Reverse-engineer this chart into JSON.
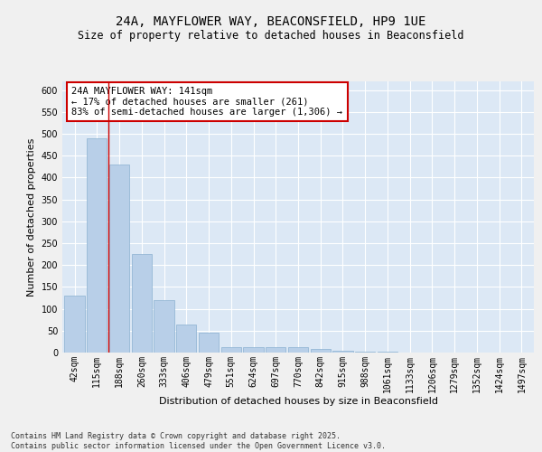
{
  "title_line1": "24A, MAYFLOWER WAY, BEACONSFIELD, HP9 1UE",
  "title_line2": "Size of property relative to detached houses in Beaconsfield",
  "xlabel": "Distribution of detached houses by size in Beaconsfield",
  "ylabel": "Number of detached properties",
  "categories": [
    "42sqm",
    "115sqm",
    "188sqm",
    "260sqm",
    "333sqm",
    "406sqm",
    "479sqm",
    "551sqm",
    "624sqm",
    "697sqm",
    "770sqm",
    "842sqm",
    "915sqm",
    "988sqm",
    "1061sqm",
    "1133sqm",
    "1206sqm",
    "1279sqm",
    "1352sqm",
    "1424sqm",
    "1497sqm"
  ],
  "values": [
    130,
    490,
    430,
    225,
    120,
    65,
    45,
    13,
    12,
    13,
    12,
    8,
    5,
    3,
    2,
    1,
    0,
    0,
    0,
    0,
    0
  ],
  "bar_color": "#b8cfe8",
  "bar_edge_color": "#8ab0d0",
  "vline_x_index": 1.5,
  "vline_color": "#cc0000",
  "annotation_text": "24A MAYFLOWER WAY: 141sqm\n← 17% of detached houses are smaller (261)\n83% of semi-detached houses are larger (1,306) →",
  "annotation_box_color": "#ffffff",
  "annotation_box_edge": "#cc0000",
  "ylim": [
    0,
    620
  ],
  "yticks": [
    0,
    50,
    100,
    150,
    200,
    250,
    300,
    350,
    400,
    450,
    500,
    550,
    600
  ],
  "plot_bg_color": "#dce8f5",
  "fig_bg_color": "#f0f0f0",
  "footer_line1": "Contains HM Land Registry data © Crown copyright and database right 2025.",
  "footer_line2": "Contains public sector information licensed under the Open Government Licence v3.0.",
  "title_fontsize": 10,
  "subtitle_fontsize": 8.5,
  "axis_label_fontsize": 8,
  "tick_fontsize": 7,
  "annotation_fontsize": 7.5
}
